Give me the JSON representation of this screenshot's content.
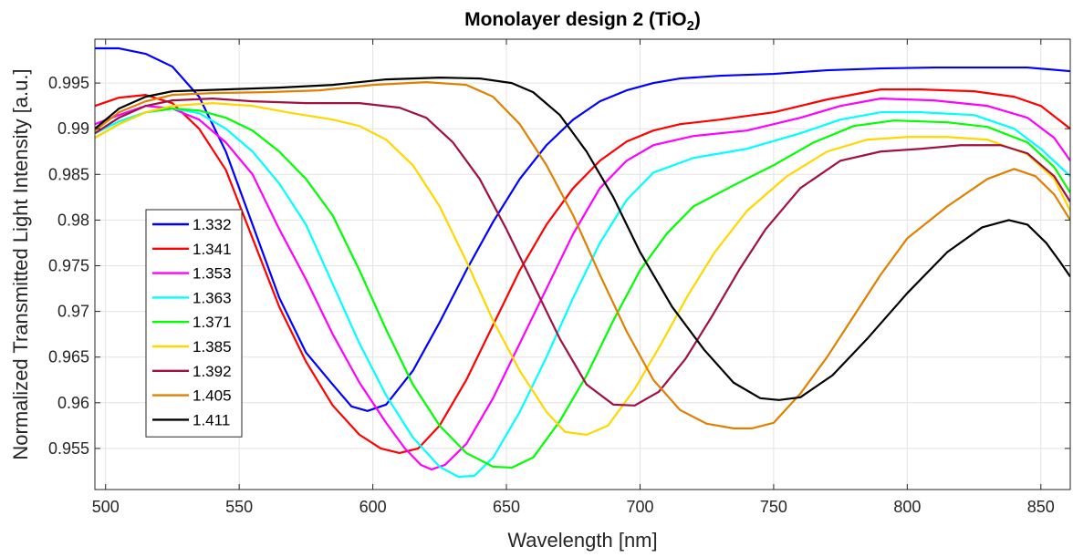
{
  "chart_data": {
    "type": "line",
    "title": {
      "main": "Monolayer design 2 (TiO",
      "subscript": "2",
      "closing": ")"
    },
    "xlabel": "Wavelength [nm]",
    "ylabel": "Normalized Transmitted Light Intensity [a.u.]",
    "xlim": [
      496,
      861
    ],
    "ylim": [
      0.9505,
      0.9998
    ],
    "x_ticks": [
      500,
      550,
      600,
      650,
      700,
      750,
      800,
      850
    ],
    "y_ticks": [
      0.955,
      0.96,
      0.965,
      0.97,
      0.975,
      0.98,
      0.985,
      0.99,
      0.995
    ],
    "y_tick_labels": [
      "0.955",
      "0.96",
      "0.965",
      "0.97",
      "0.975",
      "0.98",
      "0.985",
      "0.99",
      "0.995"
    ],
    "grid": true,
    "legend_position": "left",
    "series": [
      {
        "name": "1.332",
        "color": "#0000ff",
        "points": [
          [
            496,
            0.9988
          ],
          [
            505,
            0.9988
          ],
          [
            515,
            0.9982
          ],
          [
            525,
            0.9968
          ],
          [
            535,
            0.9935
          ],
          [
            545,
            0.9875
          ],
          [
            555,
            0.9795
          ],
          [
            565,
            0.9715
          ],
          [
            575,
            0.9655
          ],
          [
            585,
            0.962
          ],
          [
            592,
            0.9596
          ],
          [
            598,
            0.9591
          ],
          [
            605,
            0.9598
          ],
          [
            615,
            0.9635
          ],
          [
            625,
            0.9688
          ],
          [
            635,
            0.9745
          ],
          [
            645,
            0.9798
          ],
          [
            655,
            0.9845
          ],
          [
            665,
            0.9882
          ],
          [
            675,
            0.991
          ],
          [
            685,
            0.993
          ],
          [
            695,
            0.9942
          ],
          [
            705,
            0.995
          ],
          [
            715,
            0.9955
          ],
          [
            730,
            0.9958
          ],
          [
            750,
            0.996
          ],
          [
            770,
            0.9964
          ],
          [
            790,
            0.9966
          ],
          [
            810,
            0.9967
          ],
          [
            830,
            0.9967
          ],
          [
            845,
            0.9967
          ],
          [
            861,
            0.9963
          ]
        ]
      },
      {
        "name": "1.341",
        "color": "#ff0000",
        "points": [
          [
            496,
            0.9925
          ],
          [
            505,
            0.9934
          ],
          [
            515,
            0.9937
          ],
          [
            525,
            0.9928
          ],
          [
            535,
            0.99
          ],
          [
            545,
            0.9855
          ],
          [
            555,
            0.978
          ],
          [
            565,
            0.9705
          ],
          [
            575,
            0.9645
          ],
          [
            585,
            0.9597
          ],
          [
            595,
            0.9565
          ],
          [
            603,
            0.955
          ],
          [
            610,
            0.9545
          ],
          [
            617,
            0.955
          ],
          [
            625,
            0.9575
          ],
          [
            635,
            0.9625
          ],
          [
            645,
            0.9685
          ],
          [
            655,
            0.9745
          ],
          [
            665,
            0.9795
          ],
          [
            675,
            0.9835
          ],
          [
            685,
            0.9865
          ],
          [
            695,
            0.9886
          ],
          [
            705,
            0.9898
          ],
          [
            715,
            0.9905
          ],
          [
            730,
            0.991
          ],
          [
            750,
            0.9918
          ],
          [
            770,
            0.9932
          ],
          [
            790,
            0.9943
          ],
          [
            805,
            0.9943
          ],
          [
            825,
            0.9941
          ],
          [
            840,
            0.9935
          ],
          [
            850,
            0.9925
          ],
          [
            861,
            0.99
          ]
        ]
      },
      {
        "name": "1.353",
        "color": "#ff00ff",
        "points": [
          [
            496,
            0.9905
          ],
          [
            505,
            0.9915
          ],
          [
            515,
            0.9925
          ],
          [
            525,
            0.9922
          ],
          [
            535,
            0.991
          ],
          [
            545,
            0.9885
          ],
          [
            555,
            0.985
          ],
          [
            565,
            0.979
          ],
          [
            575,
            0.9735
          ],
          [
            585,
            0.9675
          ],
          [
            595,
            0.9622
          ],
          [
            605,
            0.9578
          ],
          [
            612,
            0.955
          ],
          [
            618,
            0.9532
          ],
          [
            622,
            0.9527
          ],
          [
            627,
            0.9532
          ],
          [
            635,
            0.9555
          ],
          [
            645,
            0.9605
          ],
          [
            655,
            0.9665
          ],
          [
            665,
            0.9725
          ],
          [
            675,
            0.9785
          ],
          [
            685,
            0.9835
          ],
          [
            695,
            0.9865
          ],
          [
            705,
            0.9882
          ],
          [
            720,
            0.9892
          ],
          [
            740,
            0.9898
          ],
          [
            760,
            0.9912
          ],
          [
            775,
            0.9925
          ],
          [
            790,
            0.9933
          ],
          [
            810,
            0.9931
          ],
          [
            830,
            0.9925
          ],
          [
            845,
            0.9912
          ],
          [
            855,
            0.989
          ],
          [
            861,
            0.9865
          ]
        ]
      },
      {
        "name": "1.363",
        "color": "#00ffff",
        "points": [
          [
            496,
            0.9895
          ],
          [
            505,
            0.9908
          ],
          [
            515,
            0.9918
          ],
          [
            525,
            0.9922
          ],
          [
            535,
            0.9917
          ],
          [
            545,
            0.99
          ],
          [
            555,
            0.9875
          ],
          [
            565,
            0.984
          ],
          [
            575,
            0.9795
          ],
          [
            585,
            0.973
          ],
          [
            595,
            0.9665
          ],
          [
            605,
            0.9608
          ],
          [
            615,
            0.9562
          ],
          [
            625,
            0.953
          ],
          [
            632,
            0.9519
          ],
          [
            638,
            0.952
          ],
          [
            645,
            0.954
          ],
          [
            655,
            0.959
          ],
          [
            665,
            0.965
          ],
          [
            675,
            0.9715
          ],
          [
            685,
            0.9775
          ],
          [
            695,
            0.9822
          ],
          [
            705,
            0.9852
          ],
          [
            720,
            0.9868
          ],
          [
            740,
            0.9878
          ],
          [
            760,
            0.9895
          ],
          [
            775,
            0.991
          ],
          [
            790,
            0.9918
          ],
          [
            805,
            0.9918
          ],
          [
            825,
            0.9915
          ],
          [
            840,
            0.99
          ],
          [
            850,
            0.9878
          ],
          [
            861,
            0.9848
          ]
        ]
      },
      {
        "name": "1.371",
        "color": "#00ff00",
        "points": [
          [
            496,
            0.989
          ],
          [
            505,
            0.9905
          ],
          [
            515,
            0.9918
          ],
          [
            525,
            0.9922
          ],
          [
            535,
            0.992
          ],
          [
            545,
            0.9912
          ],
          [
            555,
            0.9898
          ],
          [
            565,
            0.9875
          ],
          [
            575,
            0.9845
          ],
          [
            585,
            0.9805
          ],
          [
            595,
            0.9745
          ],
          [
            605,
            0.968
          ],
          [
            615,
            0.962
          ],
          [
            625,
            0.9575
          ],
          [
            635,
            0.9545
          ],
          [
            645,
            0.953
          ],
          [
            652,
            0.9529
          ],
          [
            660,
            0.954
          ],
          [
            670,
            0.958
          ],
          [
            680,
            0.963
          ],
          [
            690,
            0.969
          ],
          [
            700,
            0.9745
          ],
          [
            710,
            0.9785
          ],
          [
            720,
            0.9815
          ],
          [
            735,
            0.9838
          ],
          [
            750,
            0.986
          ],
          [
            765,
            0.9885
          ],
          [
            780,
            0.9903
          ],
          [
            795,
            0.9909
          ],
          [
            815,
            0.9907
          ],
          [
            830,
            0.9902
          ],
          [
            845,
            0.9885
          ],
          [
            855,
            0.9858
          ],
          [
            861,
            0.983
          ]
        ]
      },
      {
        "name": "1.385",
        "color": "#ffd700",
        "points": [
          [
            496,
            0.989
          ],
          [
            505,
            0.9905
          ],
          [
            515,
            0.9918
          ],
          [
            525,
            0.9925
          ],
          [
            540,
            0.9928
          ],
          [
            555,
            0.9925
          ],
          [
            570,
            0.9917
          ],
          [
            585,
            0.991
          ],
          [
            595,
            0.9903
          ],
          [
            605,
            0.9888
          ],
          [
            615,
            0.986
          ],
          [
            625,
            0.9815
          ],
          [
            635,
            0.9755
          ],
          [
            645,
            0.969
          ],
          [
            655,
            0.9635
          ],
          [
            665,
            0.959
          ],
          [
            672,
            0.9568
          ],
          [
            680,
            0.9565
          ],
          [
            688,
            0.9575
          ],
          [
            698,
            0.9615
          ],
          [
            708,
            0.9665
          ],
          [
            718,
            0.9718
          ],
          [
            728,
            0.9765
          ],
          [
            740,
            0.981
          ],
          [
            755,
            0.9848
          ],
          [
            770,
            0.9875
          ],
          [
            785,
            0.9888
          ],
          [
            800,
            0.9891
          ],
          [
            815,
            0.9891
          ],
          [
            830,
            0.9888
          ],
          [
            845,
            0.9872
          ],
          [
            855,
            0.9845
          ],
          [
            861,
            0.981
          ]
        ]
      },
      {
        "name": "1.392",
        "color": "#a01040",
        "points": [
          [
            496,
            0.9895
          ],
          [
            505,
            0.9912
          ],
          [
            515,
            0.9925
          ],
          [
            525,
            0.9931
          ],
          [
            540,
            0.9933
          ],
          [
            555,
            0.993
          ],
          [
            575,
            0.9928
          ],
          [
            595,
            0.9928
          ],
          [
            610,
            0.9923
          ],
          [
            620,
            0.9912
          ],
          [
            630,
            0.9885
          ],
          [
            640,
            0.9845
          ],
          [
            650,
            0.979
          ],
          [
            660,
            0.973
          ],
          [
            670,
            0.967
          ],
          [
            680,
            0.962
          ],
          [
            690,
            0.9598
          ],
          [
            698,
            0.9597
          ],
          [
            707,
            0.9612
          ],
          [
            717,
            0.9648
          ],
          [
            727,
            0.9695
          ],
          [
            737,
            0.9745
          ],
          [
            747,
            0.979
          ],
          [
            760,
            0.9835
          ],
          [
            775,
            0.9865
          ],
          [
            790,
            0.9875
          ],
          [
            805,
            0.9878
          ],
          [
            820,
            0.9882
          ],
          [
            835,
            0.9882
          ],
          [
            845,
            0.9873
          ],
          [
            855,
            0.9848
          ],
          [
            861,
            0.982
          ]
        ]
      },
      {
        "name": "1.405",
        "color": "#e08000",
        "points": [
          [
            496,
            0.9898
          ],
          [
            505,
            0.9918
          ],
          [
            515,
            0.993
          ],
          [
            525,
            0.9937
          ],
          [
            540,
            0.9939
          ],
          [
            560,
            0.994
          ],
          [
            580,
            0.9942
          ],
          [
            600,
            0.9948
          ],
          [
            620,
            0.9951
          ],
          [
            635,
            0.9948
          ],
          [
            645,
            0.9935
          ],
          [
            655,
            0.9905
          ],
          [
            665,
            0.986
          ],
          [
            675,
            0.9805
          ],
          [
            685,
            0.974
          ],
          [
            695,
            0.9678
          ],
          [
            705,
            0.9625
          ],
          [
            715,
            0.9592
          ],
          [
            725,
            0.9577
          ],
          [
            735,
            0.9572
          ],
          [
            742,
            0.9572
          ],
          [
            750,
            0.9578
          ],
          [
            760,
            0.961
          ],
          [
            770,
            0.965
          ],
          [
            780,
            0.9695
          ],
          [
            790,
            0.974
          ],
          [
            800,
            0.978
          ],
          [
            815,
            0.9815
          ],
          [
            830,
            0.9845
          ],
          [
            840,
            0.9856
          ],
          [
            848,
            0.9848
          ],
          [
            855,
            0.9828
          ],
          [
            861,
            0.98
          ]
        ]
      },
      {
        "name": "1.411",
        "color": "#000000",
        "points": [
          [
            496,
            0.99
          ],
          [
            505,
            0.9922
          ],
          [
            515,
            0.9935
          ],
          [
            525,
            0.9941
          ],
          [
            545,
            0.9943
          ],
          [
            565,
            0.9945
          ],
          [
            585,
            0.9948
          ],
          [
            605,
            0.9954
          ],
          [
            625,
            0.9956
          ],
          [
            640,
            0.9955
          ],
          [
            652,
            0.995
          ],
          [
            660,
            0.994
          ],
          [
            670,
            0.9915
          ],
          [
            680,
            0.9875
          ],
          [
            690,
            0.9825
          ],
          [
            700,
            0.9765
          ],
          [
            712,
            0.9705
          ],
          [
            724,
            0.9658
          ],
          [
            735,
            0.9622
          ],
          [
            745,
            0.9605
          ],
          [
            752,
            0.9603
          ],
          [
            760,
            0.9606
          ],
          [
            772,
            0.963
          ],
          [
            785,
            0.967
          ],
          [
            800,
            0.972
          ],
          [
            815,
            0.9765
          ],
          [
            828,
            0.9792
          ],
          [
            838,
            0.98
          ],
          [
            845,
            0.9795
          ],
          [
            852,
            0.9775
          ],
          [
            857,
            0.9755
          ],
          [
            861,
            0.9738
          ]
        ]
      }
    ]
  }
}
